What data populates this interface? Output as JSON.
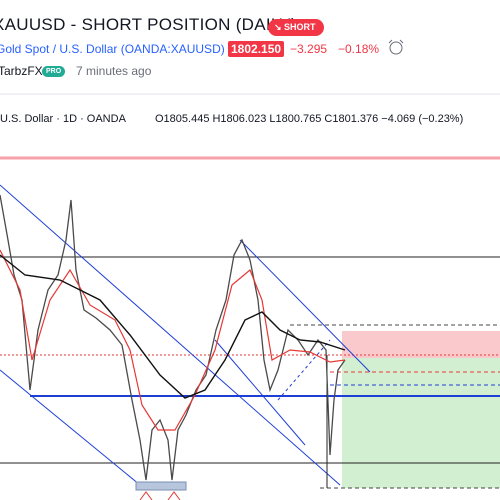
{
  "header": {
    "title": "XAUUSD - SHORT POSITION (DAILY)",
    "badge": "SHORT",
    "symbol": "Gold Spot / U.S. Dollar (OANDA:XAUUSD)",
    "price": "1802.150",
    "change": "−3.295",
    "change_percent": "−0.18%",
    "author": "TarbzFX",
    "author_badge": "PRO",
    "time": "7 minutes ago"
  },
  "chart_legend": {
    "instrument": "U.S. Dollar · 1D · OANDA",
    "ohlc": "O1805.445  H1806.023  L1800.765  C1801.376  −4.069 (−0.23%)"
  }
}
